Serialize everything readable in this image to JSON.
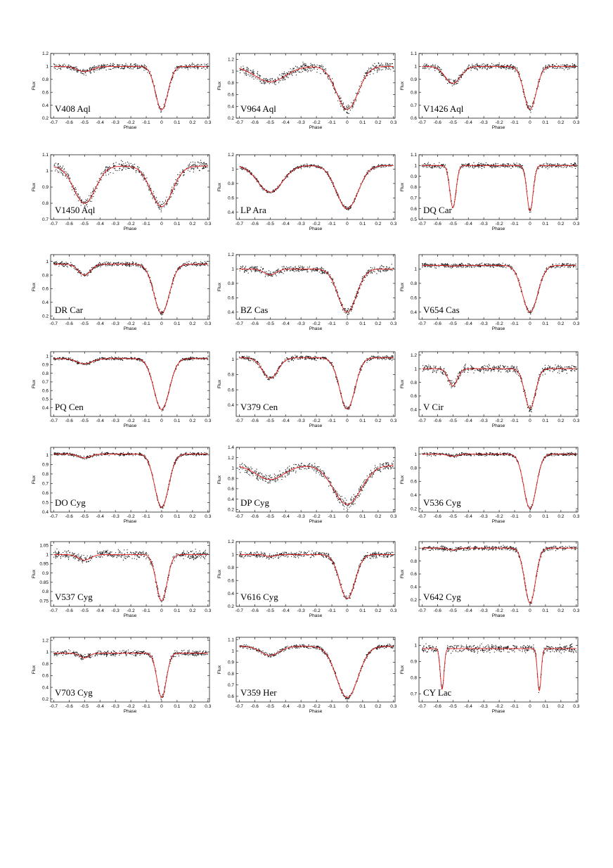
{
  "page": {
    "background": "#ffffff"
  },
  "chart_data": [
    {
      "type": "scatter",
      "name_label": "V408 Aql",
      "xlabel": "Phase",
      "ylabel": "Flux",
      "xlim": [
        -0.72,
        0.31
      ],
      "ylim": [
        0.2,
        1.2
      ],
      "yticks": [
        "0.2",
        "0.4",
        "0.6",
        "0.8",
        "1",
        "1.2"
      ],
      "ytick_values": [
        0.2,
        0.4,
        0.6,
        0.8,
        1.0,
        1.2
      ],
      "primary": {
        "phase": 0.0,
        "min_flux": 0.33,
        "width": 0.04
      },
      "secondary": {
        "phase": -0.5,
        "min_flux": 0.92,
        "width": 0.05
      },
      "baseline": 1.0,
      "scatter": 0.04
    },
    {
      "type": "scatter",
      "name_label": "V964 Aql",
      "xlabel": "Phase",
      "ylabel": "Flux",
      "xlim": [
        -0.72,
        0.31
      ],
      "ylim": [
        0.2,
        1.3
      ],
      "yticks": [
        "0.2",
        "0.4",
        "0.6",
        "0.8",
        "1",
        "1.2"
      ],
      "ytick_values": [
        0.2,
        0.4,
        0.6,
        0.8,
        1.0,
        1.2
      ],
      "primary": {
        "phase": 0.0,
        "min_flux": 0.35,
        "width": 0.07
      },
      "secondary": {
        "phase": -0.5,
        "min_flux": 0.82,
        "width": 0.1
      },
      "baseline": 1.08,
      "scatter": 0.07
    },
    {
      "type": "scatter",
      "name_label": "V1426 Aql",
      "xlabel": "Phase",
      "ylabel": "Flux",
      "xlim": [
        -0.72,
        0.31
      ],
      "ylim": [
        0.6,
        1.1
      ],
      "yticks": [
        "0.6",
        "0.7",
        "0.8",
        "0.9",
        "1",
        "1.1"
      ],
      "ytick_values": [
        0.6,
        0.7,
        0.8,
        0.9,
        1.0,
        1.1
      ],
      "primary": {
        "phase": 0.0,
        "min_flux": 0.67,
        "width": 0.04
      },
      "secondary": {
        "phase": -0.5,
        "min_flux": 0.87,
        "width": 0.05
      },
      "baseline": 1.0,
      "scatter": 0.02
    },
    {
      "type": "scatter",
      "name_label": "V1450 Aql",
      "xlabel": "Phase",
      "ylabel": "Flux",
      "xlim": [
        -0.72,
        0.31
      ],
      "ylim": [
        0.7,
        1.1
      ],
      "yticks": [
        "0.7",
        "0.8",
        "0.9",
        "1",
        "1.1"
      ],
      "ytick_values": [
        0.7,
        0.8,
        0.9,
        1.0,
        1.1
      ],
      "primary": {
        "phase": 0.0,
        "min_flux": 0.78,
        "width": 0.07
      },
      "secondary": {
        "phase": -0.5,
        "min_flux": 0.8,
        "width": 0.07
      },
      "baseline": 1.03,
      "scatter": 0.025
    },
    {
      "type": "scatter",
      "name_label": "LP Ara",
      "xlabel": "Phase",
      "ylabel": "Flux",
      "xlim": [
        -0.72,
        0.31
      ],
      "ylim": [
        0.3,
        1.2
      ],
      "yticks": [
        "0.4",
        "0.6",
        "0.8",
        "1",
        "1.2"
      ],
      "ytick_values": [
        0.4,
        0.6,
        0.8,
        1.0,
        1.2
      ],
      "primary": {
        "phase": 0.0,
        "min_flux": 0.45,
        "width": 0.07
      },
      "secondary": {
        "phase": -0.5,
        "min_flux": 0.68,
        "width": 0.08
      },
      "baseline": 1.05,
      "scatter": 0.02
    },
    {
      "type": "scatter",
      "name_label": "DQ Car",
      "xlabel": "Phase",
      "ylabel": "Flux",
      "xlim": [
        -0.72,
        0.31
      ],
      "ylim": [
        0.5,
        1.1
      ],
      "yticks": [
        "0.5",
        "0.6",
        "0.7",
        "0.8",
        "0.9",
        "1",
        "1.1"
      ],
      "ytick_values": [
        0.5,
        0.6,
        0.7,
        0.8,
        0.9,
        1.0,
        1.1
      ],
      "primary": {
        "phase": 0.0,
        "min_flux": 0.58,
        "width": 0.02
      },
      "secondary": {
        "phase": -0.5,
        "min_flux": 0.61,
        "width": 0.02
      },
      "baseline": 1.0,
      "scatter": 0.02
    },
    {
      "type": "scatter",
      "name_label": "DR Car",
      "xlabel": "Phase",
      "ylabel": "Flux",
      "xlim": [
        -0.72,
        0.31
      ],
      "ylim": [
        0.15,
        1.1
      ],
      "yticks": [
        "0.2",
        "0.4",
        "0.6",
        "0.8",
        "1"
      ],
      "ytick_values": [
        0.2,
        0.4,
        0.6,
        0.8,
        1.0
      ],
      "primary": {
        "phase": 0.0,
        "min_flux": 0.24,
        "width": 0.05
      },
      "secondary": {
        "phase": -0.5,
        "min_flux": 0.8,
        "width": 0.04
      },
      "baseline": 0.96,
      "scatter": 0.03
    },
    {
      "type": "scatter",
      "name_label": "BZ Cas",
      "xlabel": "Phase",
      "ylabel": "Flux",
      "xlim": [
        -0.72,
        0.31
      ],
      "ylim": [
        0.3,
        1.2
      ],
      "yticks": [
        "0.4",
        "0.6",
        "0.8",
        "1",
        "1.2"
      ],
      "ytick_values": [
        0.4,
        0.6,
        0.8,
        1.0,
        1.2
      ],
      "primary": {
        "phase": 0.0,
        "min_flux": 0.4,
        "width": 0.06
      },
      "secondary": {
        "phase": -0.5,
        "min_flux": 0.92,
        "width": 0.04
      },
      "baseline": 1.0,
      "scatter": 0.04
    },
    {
      "type": "scatter",
      "name_label": "V654 Cas",
      "xlabel": "Phase",
      "ylabel": "Flux",
      "xlim": [
        -0.72,
        0.31
      ],
      "ylim": [
        0.3,
        1.2
      ],
      "yticks": [
        "0.4",
        "0.6",
        "0.8",
        "1"
      ],
      "ytick_values": [
        0.4,
        0.6,
        0.8,
        1.0
      ],
      "primary": {
        "phase": 0.0,
        "min_flux": 0.4,
        "width": 0.05
      },
      "secondary": {
        "phase": -0.5,
        "min_flux": 1.04,
        "width": 0.03
      },
      "baseline": 1.05,
      "scatter": 0.025
    },
    {
      "type": "scatter",
      "name_label": "PQ Cen",
      "xlabel": "Phase",
      "ylabel": "Flux",
      "xlim": [
        -0.72,
        0.31
      ],
      "ylim": [
        0.3,
        1.05
      ],
      "yticks": [
        "0.4",
        "0.5",
        "0.6",
        "0.7",
        "0.8",
        "0.9",
        "1"
      ],
      "ytick_values": [
        0.4,
        0.5,
        0.6,
        0.7,
        0.8,
        0.9,
        1.0
      ],
      "primary": {
        "phase": 0.0,
        "min_flux": 0.38,
        "width": 0.05
      },
      "secondary": {
        "phase": -0.5,
        "min_flux": 0.91,
        "width": 0.05
      },
      "baseline": 0.97,
      "scatter": 0.015
    },
    {
      "type": "scatter",
      "name_label": "V379 Cen",
      "xlabel": "Phase",
      "ylabel": "Flux",
      "xlim": [
        -0.72,
        0.31
      ],
      "ylim": [
        0.25,
        1.1
      ],
      "yticks": [
        "0.4",
        "0.6",
        "0.8",
        "1"
      ],
      "ytick_values": [
        0.4,
        0.6,
        0.8,
        1.0
      ],
      "primary": {
        "phase": 0.0,
        "min_flux": 0.35,
        "width": 0.05
      },
      "secondary": {
        "phase": -0.5,
        "min_flux": 0.75,
        "width": 0.05
      },
      "baseline": 1.02,
      "scatter": 0.025
    },
    {
      "type": "scatter",
      "name_label": "V Cir",
      "xlabel": "Phase",
      "ylabel": "Flux",
      "xlim": [
        -0.72,
        0.31
      ],
      "ylim": [
        0.3,
        1.25
      ],
      "yticks": [
        "0.4",
        "0.6",
        "0.8",
        "1",
        "1.2"
      ],
      "ytick_values": [
        0.4,
        0.6,
        0.8,
        1.0,
        1.2
      ],
      "primary": {
        "phase": 0.0,
        "min_flux": 0.42,
        "width": 0.035
      },
      "secondary": {
        "phase": -0.5,
        "min_flux": 0.75,
        "width": 0.03
      },
      "baseline": 1.0,
      "scatter": 0.05
    },
    {
      "type": "scatter",
      "name_label": "DO Cyg",
      "xlabel": "Phase",
      "ylabel": "Flux",
      "xlim": [
        -0.72,
        0.31
      ],
      "ylim": [
        0.4,
        1.08
      ],
      "yticks": [
        "0.4",
        "0.5",
        "0.6",
        "0.7",
        "0.8",
        "0.9",
        "1"
      ],
      "ytick_values": [
        0.4,
        0.5,
        0.6,
        0.7,
        0.8,
        0.9,
        1.0
      ],
      "primary": {
        "phase": 0.0,
        "min_flux": 0.45,
        "width": 0.045
      },
      "secondary": {
        "phase": -0.5,
        "min_flux": 0.97,
        "width": 0.04
      },
      "baseline": 1.01,
      "scatter": 0.015
    },
    {
      "type": "scatter",
      "name_label": "DP Cyg",
      "xlabel": "Phase",
      "ylabel": "Flux",
      "xlim": [
        -0.72,
        0.31
      ],
      "ylim": [
        0.15,
        1.4
      ],
      "yticks": [
        "0.2",
        "0.4",
        "0.6",
        "0.8",
        "1",
        "1.2",
        "1.4"
      ],
      "ytick_values": [
        0.2,
        0.4,
        0.6,
        0.8,
        1.0,
        1.2,
        1.4
      ],
      "primary": {
        "phase": 0.0,
        "min_flux": 0.3,
        "width": 0.09
      },
      "secondary": {
        "phase": -0.5,
        "min_flux": 0.78,
        "width": 0.09
      },
      "baseline": 1.05,
      "scatter": 0.08
    },
    {
      "type": "scatter",
      "name_label": "V536 Cyg",
      "xlabel": "Phase",
      "ylabel": "Flux",
      "xlim": [
        -0.72,
        0.31
      ],
      "ylim": [
        0.15,
        1.1
      ],
      "yticks": [
        "0.2",
        "0.4",
        "0.6",
        "0.8",
        "1"
      ],
      "ytick_values": [
        0.2,
        0.4,
        0.6,
        0.8,
        1.0
      ],
      "primary": {
        "phase": 0.0,
        "min_flux": 0.2,
        "width": 0.04
      },
      "secondary": {
        "phase": -0.5,
        "min_flux": 0.97,
        "width": 0.03
      },
      "baseline": 1.0,
      "scatter": 0.02
    },
    {
      "type": "scatter",
      "name_label": "V537 Cyg",
      "xlabel": "Phase",
      "ylabel": "Flux",
      "xlim": [
        -0.72,
        0.31
      ],
      "ylim": [
        0.72,
        1.07
      ],
      "yticks": [
        "0.75",
        "0.8",
        "0.85",
        "0.9",
        "0.95",
        "1",
        "1.05"
      ],
      "ytick_values": [
        0.75,
        0.8,
        0.85,
        0.9,
        0.95,
        1.0,
        1.05
      ],
      "primary": {
        "phase": 0.0,
        "min_flux": 0.75,
        "width": 0.035
      },
      "secondary": {
        "phase": -0.5,
        "min_flux": 0.97,
        "width": 0.04
      },
      "baseline": 1.0,
      "scatter": 0.02
    },
    {
      "type": "scatter",
      "name_label": "V616 Cyg",
      "xlabel": "Phase",
      "ylabel": "Flux",
      "xlim": [
        -0.72,
        0.31
      ],
      "ylim": [
        0.2,
        1.2
      ],
      "yticks": [
        "0.2",
        "0.4",
        "0.6",
        "0.8",
        "1",
        "1.2"
      ],
      "ytick_values": [
        0.2,
        0.4,
        0.6,
        0.8,
        1.0,
        1.2
      ],
      "primary": {
        "phase": 0.0,
        "min_flux": 0.32,
        "width": 0.05
      },
      "secondary": {
        "phase": -0.5,
        "min_flux": 0.97,
        "width": 0.03
      },
      "baseline": 1.0,
      "scatter": 0.04
    },
    {
      "type": "scatter",
      "name_label": "V642 Cyg",
      "xlabel": "Phase",
      "ylabel": "Flux",
      "xlim": [
        -0.72,
        0.31
      ],
      "ylim": [
        0.1,
        1.1
      ],
      "yticks": [
        "0.2",
        "0.4",
        "0.6",
        "0.8",
        "1"
      ],
      "ytick_values": [
        0.2,
        0.4,
        0.6,
        0.8,
        1.0
      ],
      "primary": {
        "phase": 0.0,
        "min_flux": 0.15,
        "width": 0.035
      },
      "secondary": {
        "phase": -0.5,
        "min_flux": 0.97,
        "width": 0.03
      },
      "baseline": 1.0,
      "scatter": 0.03
    },
    {
      "type": "scatter",
      "name_label": "V703 Cyg",
      "xlabel": "Phase",
      "ylabel": "Flux",
      "xlim": [
        -0.72,
        0.31
      ],
      "ylim": [
        0.15,
        1.25
      ],
      "yticks": [
        "0.2",
        "0.4",
        "0.6",
        "0.8",
        "1",
        "1.2"
      ],
      "ytick_values": [
        0.2,
        0.4,
        0.6,
        0.8,
        1.0,
        1.2
      ],
      "primary": {
        "phase": 0.0,
        "min_flux": 0.23,
        "width": 0.03
      },
      "secondary": {
        "phase": -0.5,
        "min_flux": 0.9,
        "width": 0.03
      },
      "baseline": 0.98,
      "scatter": 0.04
    },
    {
      "type": "scatter",
      "name_label": "V359 Her",
      "xlabel": "Phase",
      "ylabel": "Flux",
      "xlim": [
        -0.72,
        0.31
      ],
      "ylim": [
        0.55,
        1.12
      ],
      "yticks": [
        "0.6",
        "0.7",
        "0.8",
        "0.9",
        "1",
        "1.1"
      ],
      "ytick_values": [
        0.6,
        0.7,
        0.8,
        0.9,
        1.0,
        1.1
      ],
      "primary": {
        "phase": 0.0,
        "min_flux": 0.59,
        "width": 0.07
      },
      "secondary": {
        "phase": -0.5,
        "min_flux": 0.96,
        "width": 0.06
      },
      "baseline": 1.04,
      "scatter": 0.015
    },
    {
      "type": "scatter",
      "name_label": "CY Lac",
      "xlabel": "Phase",
      "ylabel": "Flux",
      "xlim": [
        -0.72,
        0.31
      ],
      "ylim": [
        0.65,
        1.05
      ],
      "yticks": [
        "0.7",
        "0.8",
        "0.9",
        "1"
      ],
      "ytick_values": [
        0.7,
        0.8,
        0.9,
        1.0
      ],
      "primary": {
        "phase": 0.06,
        "min_flux": 0.72,
        "width": 0.012
      },
      "secondary": {
        "phase": -0.57,
        "min_flux": 0.73,
        "width": 0.012
      },
      "baseline": 0.98,
      "scatter": 0.02
    }
  ],
  "xticks": [
    "-0.7",
    "-0.6",
    "-0.5",
    "-0.4",
    "-0.3",
    "-0.2",
    "-0.1",
    "0",
    "0.1",
    "0.2",
    "0.3"
  ],
  "xtick_values": [
    -0.7,
    -0.6,
    -0.5,
    -0.4,
    -0.3,
    -0.2,
    -0.1,
    0.0,
    0.1,
    0.2,
    0.3
  ],
  "colors": {
    "fit": "#e31a1c",
    "points": "#111111"
  }
}
